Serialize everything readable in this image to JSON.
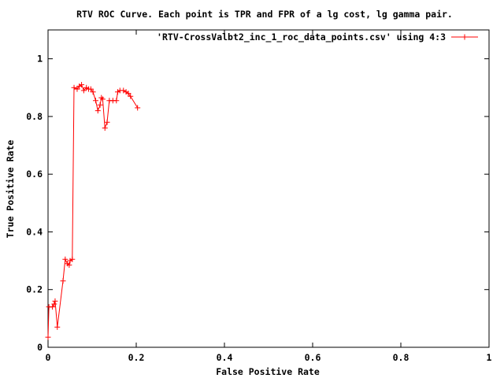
{
  "chart_data": {
    "type": "line",
    "title": "RTV ROC Curve. Each point is TPR and FPR of a lg cost, lg gamma pair.",
    "xlabel": "False Positive Rate",
    "ylabel": "True Positive Rate",
    "xlim": [
      0,
      1
    ],
    "ylim": [
      0,
      1.1
    ],
    "xticks": [
      0,
      0.2,
      0.4,
      0.6,
      0.8,
      1
    ],
    "xtick_labels": [
      "0",
      "0.2",
      "0.4",
      "0.6",
      "0.8",
      "1"
    ],
    "yticks": [
      0,
      0.2,
      0.4,
      0.6,
      0.8,
      1
    ],
    "ytick_labels": [
      "0",
      "0.2",
      "0.4",
      "0.6",
      "0.8",
      "1"
    ],
    "grid": false,
    "legend_position": "top-right",
    "series": [
      {
        "name": "'RTV-CrossValbt2_inc_1_roc_data_points.csv' using 4:3",
        "color": "#ff0000",
        "marker": "plus",
        "points": [
          [
            0.0,
            0.035
          ],
          [
            0.002,
            0.14
          ],
          [
            0.01,
            0.14
          ],
          [
            0.014,
            0.15
          ],
          [
            0.016,
            0.16
          ],
          [
            0.021,
            0.07
          ],
          [
            0.034,
            0.23
          ],
          [
            0.039,
            0.305
          ],
          [
            0.044,
            0.29
          ],
          [
            0.048,
            0.285
          ],
          [
            0.05,
            0.3
          ],
          [
            0.055,
            0.305
          ],
          [
            0.059,
            0.9
          ],
          [
            0.066,
            0.895
          ],
          [
            0.071,
            0.905
          ],
          [
            0.076,
            0.91
          ],
          [
            0.081,
            0.89
          ],
          [
            0.087,
            0.9
          ],
          [
            0.092,
            0.895
          ],
          [
            0.097,
            0.895
          ],
          [
            0.102,
            0.885
          ],
          [
            0.108,
            0.855
          ],
          [
            0.113,
            0.82
          ],
          [
            0.118,
            0.84
          ],
          [
            0.121,
            0.865
          ],
          [
            0.124,
            0.86
          ],
          [
            0.129,
            0.76
          ],
          [
            0.134,
            0.78
          ],
          [
            0.139,
            0.855
          ],
          [
            0.147,
            0.855
          ],
          [
            0.155,
            0.855
          ],
          [
            0.158,
            0.885
          ],
          [
            0.163,
            0.89
          ],
          [
            0.171,
            0.89
          ],
          [
            0.177,
            0.885
          ],
          [
            0.182,
            0.88
          ],
          [
            0.187,
            0.87
          ],
          [
            0.203,
            0.83
          ]
        ]
      }
    ]
  }
}
